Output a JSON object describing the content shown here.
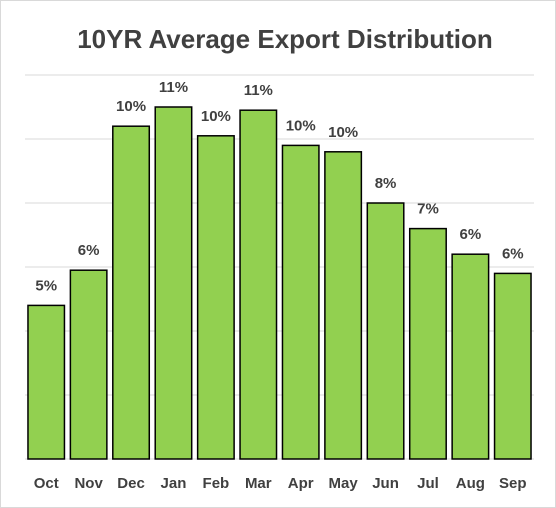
{
  "chart_data": {
    "type": "bar",
    "title": "10YR Average Export Distribution",
    "categories": [
      "Oct",
      "Nov",
      "Dec",
      "Jan",
      "Feb",
      "Mar",
      "Apr",
      "May",
      "Jun",
      "Jul",
      "Aug",
      "Sep"
    ],
    "values": [
      4.8,
      5.9,
      10.4,
      11.0,
      10.1,
      10.9,
      9.8,
      9.6,
      8.0,
      7.2,
      6.4,
      5.8
    ],
    "value_labels": [
      "5%",
      "6%",
      "10%",
      "11%",
      "10%",
      "11%",
      "10%",
      "10%",
      "8%",
      "7%",
      "6%",
      "6%"
    ],
    "color": "#92d050",
    "ylim": [
      0,
      12
    ],
    "yticks": [
      0,
      2,
      4,
      6,
      8,
      10,
      12
    ],
    "grid": true
  }
}
